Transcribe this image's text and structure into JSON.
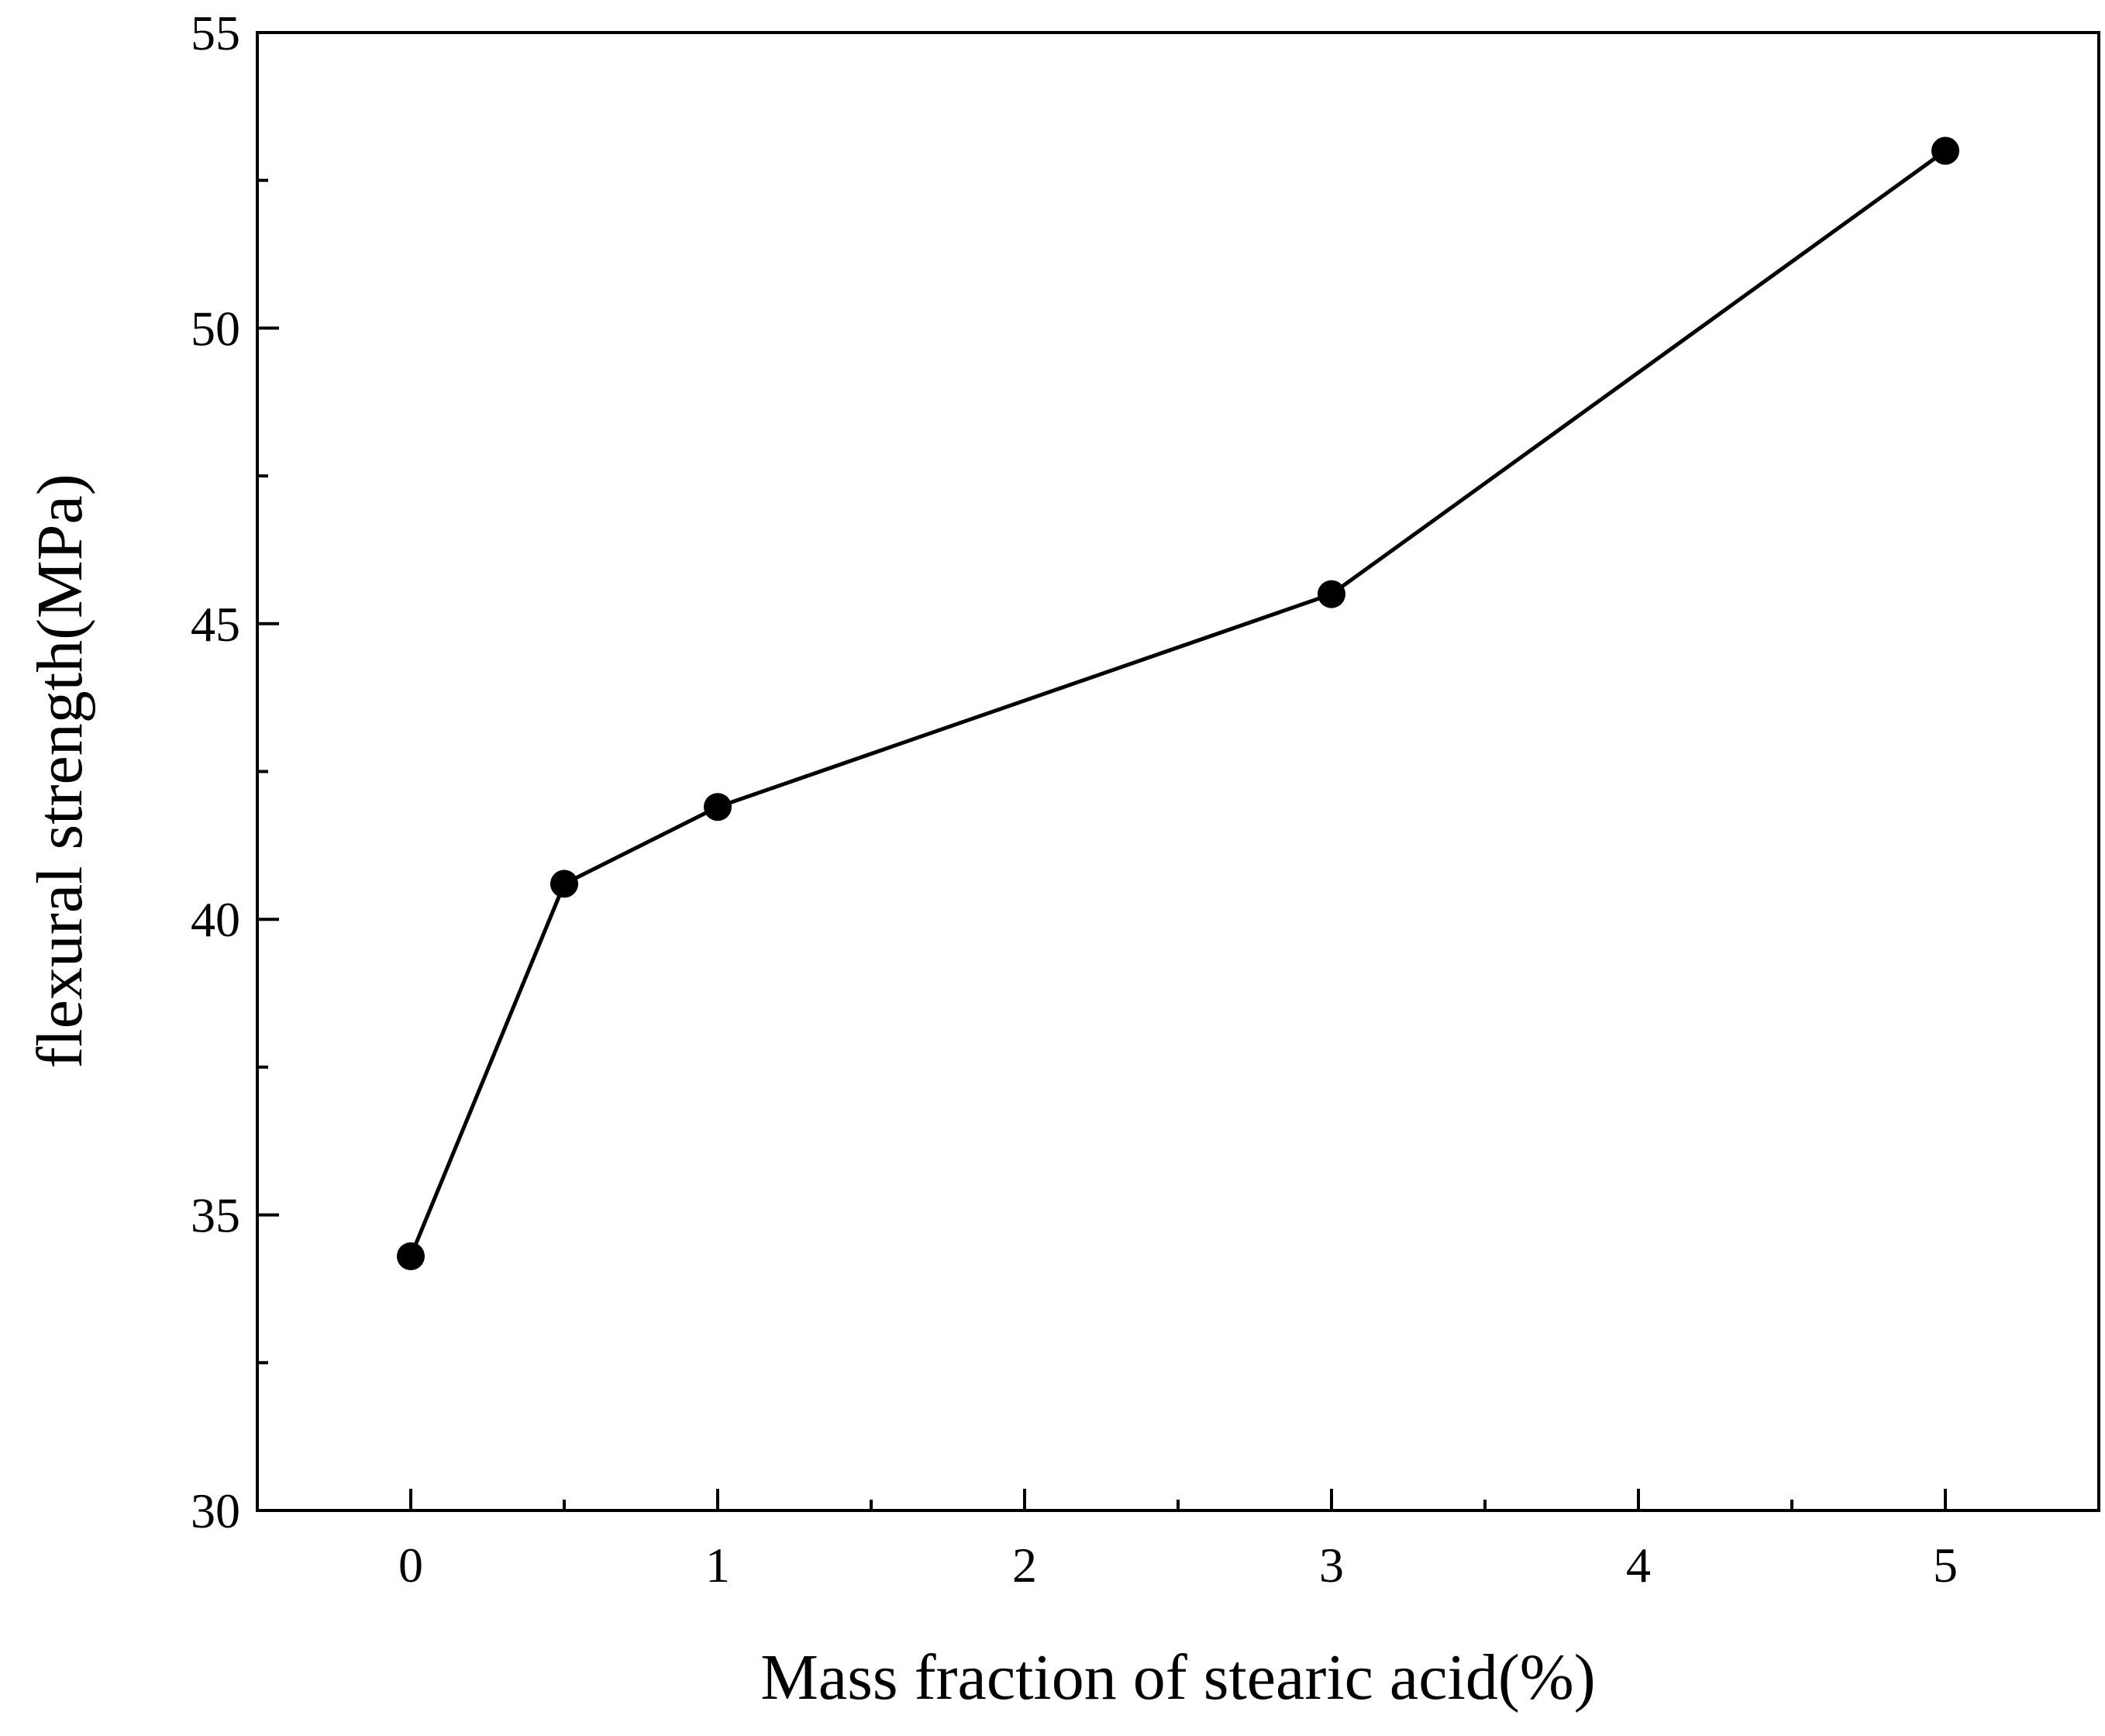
{
  "chart_data": {
    "type": "line",
    "title": "",
    "xlabel": "Mass fraction of stearic acid(%)",
    "ylabel": "flexural strength(MPa)",
    "xlim": [
      -0.5,
      5.5
    ],
    "ylim": [
      30,
      55
    ],
    "x_ticks": [
      0,
      1,
      2,
      3,
      4,
      5
    ],
    "x_tick_labels": [
      "0",
      "1",
      "2",
      "3",
      "4",
      "5"
    ],
    "x_minor_ticks": [
      0.5,
      1.5,
      2.5,
      3.5,
      4.5
    ],
    "y_ticks": [
      30,
      35,
      40,
      45,
      50,
      55
    ],
    "y_tick_labels": [
      "30",
      "35",
      "40",
      "45",
      "50",
      "55"
    ],
    "y_minor_ticks": [
      32.5,
      37.5,
      42.5,
      47.5,
      52.5
    ],
    "grid": false,
    "series": [
      {
        "name": "flexural strength",
        "color": "#000000",
        "marker": "circle",
        "x": [
          0,
          0.5,
          1,
          3,
          5
        ],
        "y": [
          34.3,
          40.6,
          41.9,
          45.5,
          53.0
        ]
      }
    ]
  }
}
